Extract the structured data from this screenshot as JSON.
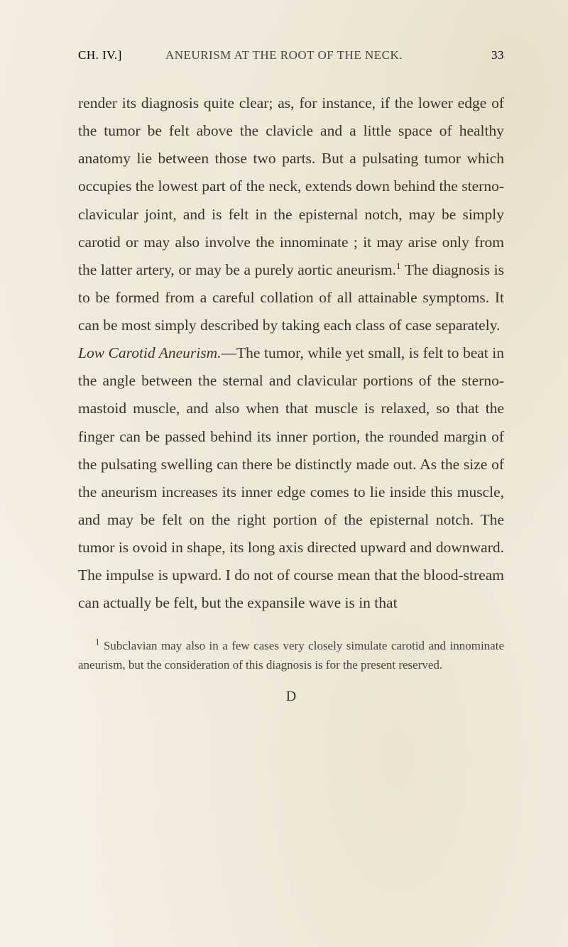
{
  "header": {
    "chapter": "CH. IV.]",
    "title": "ANEURISM AT THE ROOT OF THE NECK.",
    "page_number": "33"
  },
  "paragraphs": {
    "p1": "render its diagnosis quite clear; as, for instance, if the lower edge of the tumor be felt above the clavicle and a little space of healthy anatomy lie between those two parts. But a pulsating tumor which occupies the lowest part of the neck, extends down behind the sterno-clavicular joint, and is felt in the episternal notch, may be simply carotid or may also involve the innominate ; it may arise only from the latter artery, or may be a purely aortic aneurism.",
    "p1_after_sup": " The diagnosis is to be formed from a careful collation of all attainable symptoms. It can be most simply described by taking each class of case separately.",
    "p2_italic": "Low Carotid Aneurism.",
    "p2_rest": "—The tumor, while yet small, is felt to beat in the angle between the sternal and clavicular portions of the sterno-mastoid muscle, and also when that muscle is relaxed, so that the finger can be passed behind its inner portion, the rounded margin of the pulsating swelling can there be distinctly made out. As the size of the aneurism increases its inner edge comes to lie inside this muscle, and may be felt on the right portion of the episternal notch. The tumor is ovoid in shape, its long axis directed upward and downward. The impulse is upward. I do not of course mean that the blood-stream can actually be felt, but the expansile wave is in that"
  },
  "footnote": {
    "marker": "1",
    "text": " Subclavian may also in a few cases very closely simulate carotid and innominate aneurism, but the consideration of this diagnosis is for the present reserved."
  },
  "signature": "D",
  "colors": {
    "background": "#f5f0e4",
    "text": "#3a3428",
    "header_text": "#4a4338",
    "yellowed": "#b8943e"
  },
  "typography": {
    "body_fontsize": 21.5,
    "body_lineheight": 1.82,
    "header_fontsize": 17,
    "footnote_fontsize": 17
  }
}
